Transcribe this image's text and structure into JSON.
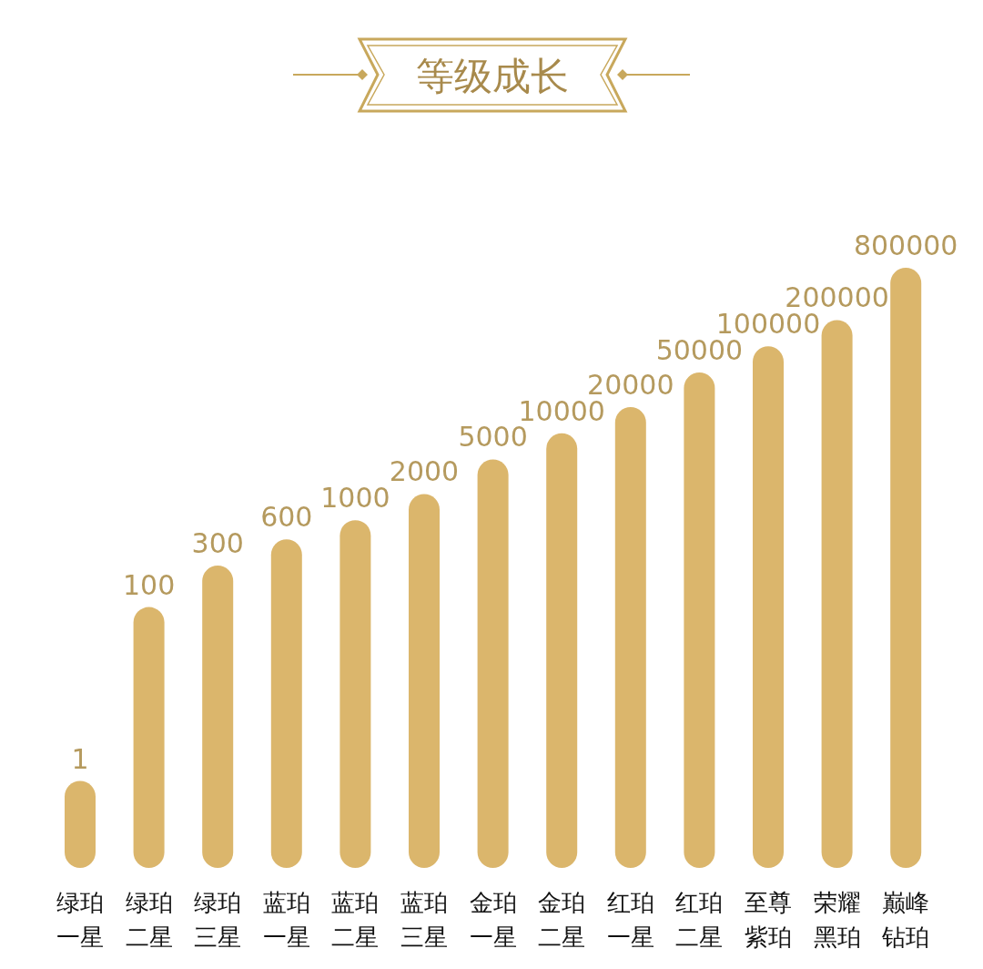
{
  "chart_data": {
    "type": "bar",
    "title": "等级成长",
    "categories": [
      "绿珀一星",
      "绿珀二星",
      "绿珀三星",
      "蓝珀一星",
      "蓝珀二星",
      "蓝珀三星",
      "金珀一星",
      "金珀二星",
      "红珀一星",
      "红珀二星",
      "至尊紫珀",
      "荣耀黑珀",
      "巅峰钻珀"
    ],
    "values": [
      1,
      100,
      300,
      600,
      1000,
      2000,
      5000,
      10000,
      20000,
      50000,
      100000,
      200000,
      800000
    ],
    "data_labels": true,
    "log": true,
    "ylim": [
      0.1,
      800000
    ],
    "color": "#dbb66c"
  }
}
